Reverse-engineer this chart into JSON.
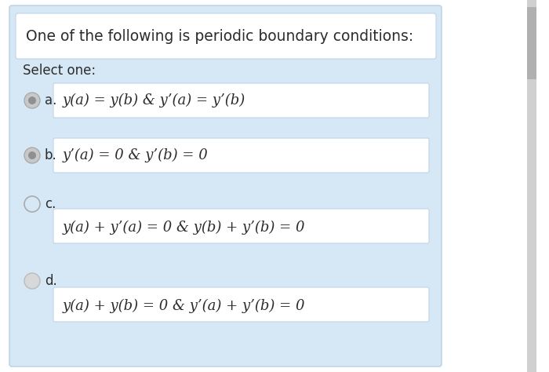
{
  "title": "One of the following is periodic boundary conditions:",
  "select_label": "Select one:",
  "options": [
    {
      "letter": "a.",
      "text_line1": "y(a) = y(b) & y’(a) = y’(b)",
      "two_lines": false,
      "radio_style": "gray_filled"
    },
    {
      "letter": "b.",
      "text_line1": "y’(a) = 0 & y’(b) = 0",
      "two_lines": false,
      "radio_style": "gray_filled"
    },
    {
      "letter": "c.",
      "text_line1": "y(a) + y’(a) = 0 & y(b) + y’(b) = 0",
      "two_lines": true,
      "radio_style": "empty"
    },
    {
      "letter": "d.",
      "text_line1": "y(a) + y(b) = 0 & y’(a) + y’(b) = 0",
      "two_lines": true,
      "radio_style": "gray_outline"
    }
  ],
  "bg_outer": "#ffffff",
  "bg_panel": "#d6e8f5",
  "title_box_bg": "#ffffff",
  "title_box_edge": "#c0d4e8",
  "option_box_bg": "#ffffff",
  "option_box_edge": "#c0d4e8",
  "text_color": "#2c2c2c",
  "scrollbar_bg": "#d0d0d0",
  "scrollbar_handle": "#b0b0b0",
  "fig_width": 7.0,
  "fig_height": 4.74,
  "dpi": 100
}
